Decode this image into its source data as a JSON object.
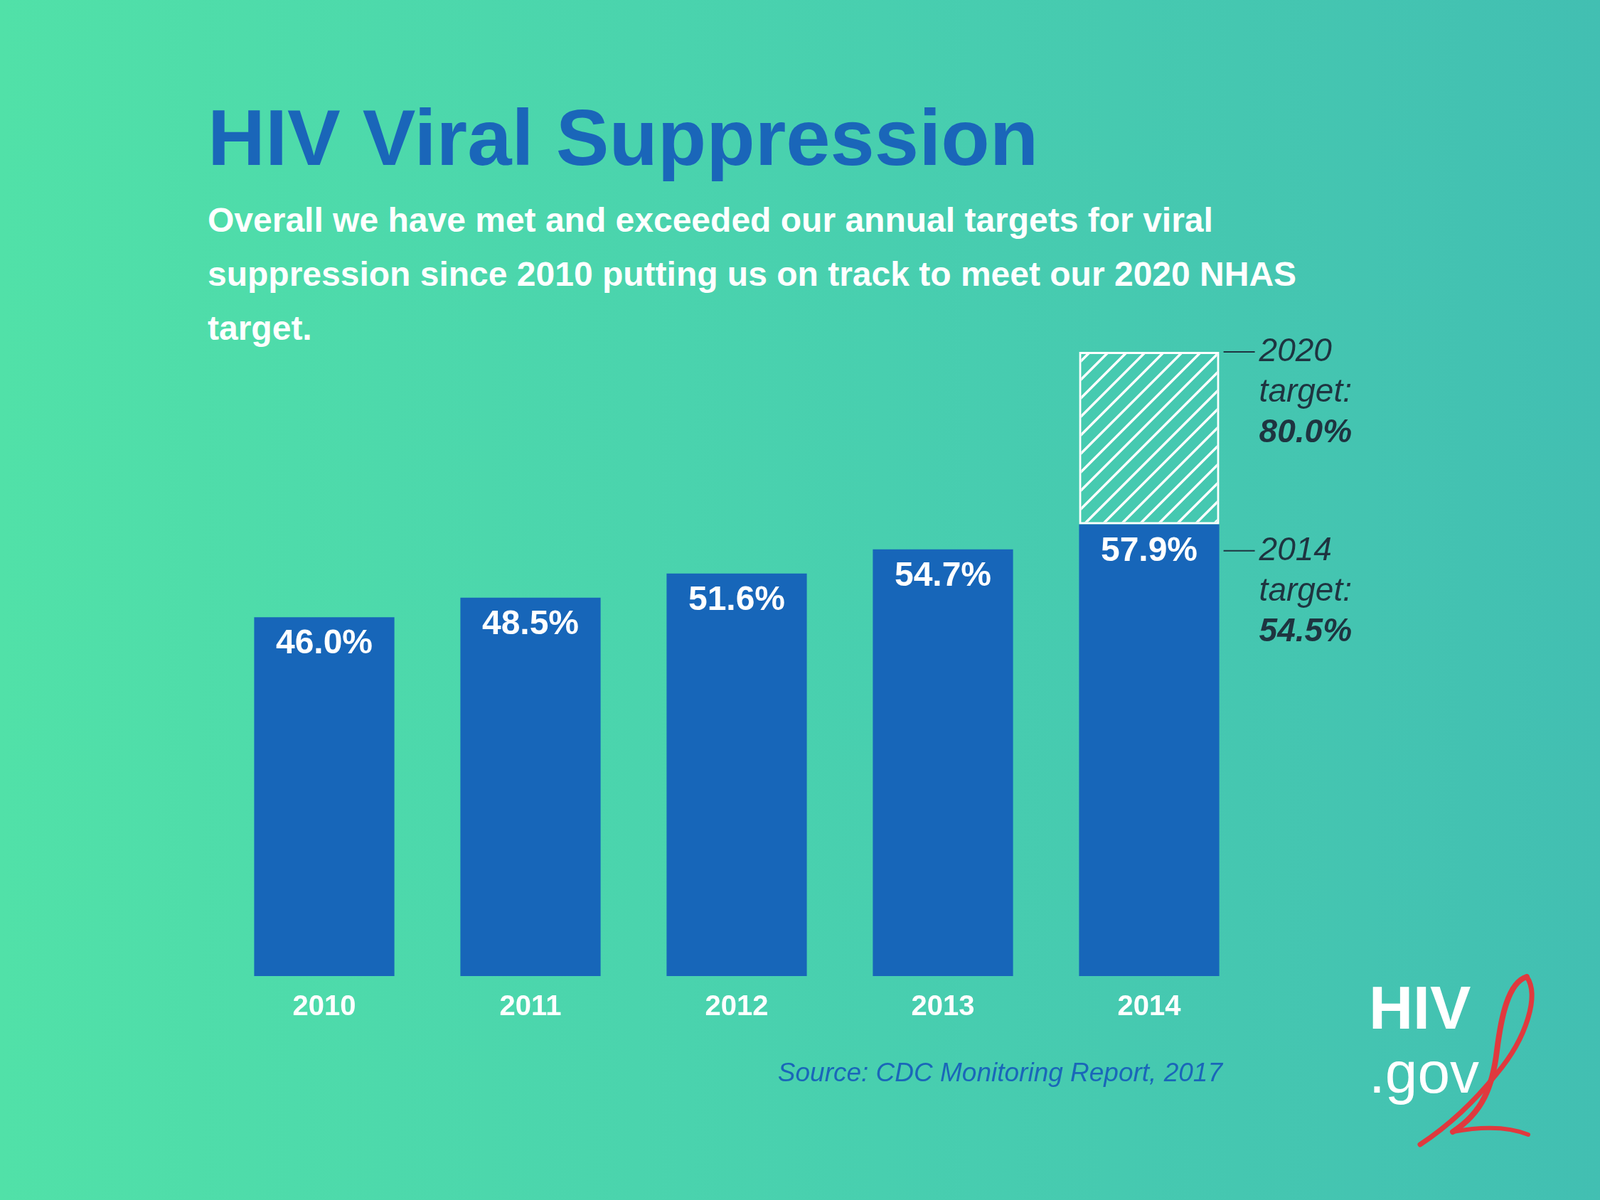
{
  "chart_data": {
    "type": "bar",
    "title": "HIV Viral Suppression",
    "subtitle": "Overall we have met and exceeded our annual targets for viral suppression since 2010 putting us on track to meet our 2020 NHAS target.",
    "categories": [
      "2010",
      "2011",
      "2012",
      "2013",
      "2014"
    ],
    "values": [
      46.0,
      48.5,
      51.6,
      54.7,
      57.9
    ],
    "value_labels": [
      "46.0%",
      "48.5%",
      "51.6%",
      "54.7%",
      "57.9%"
    ],
    "data_labels": true,
    "color": "#1766b9",
    "ylim": [
      0,
      80
    ],
    "grid": false,
    "tick_labels": "x",
    "annotations": [
      {
        "category": "2014",
        "label": "2020 target:",
        "value": 80.0,
        "value_label": "80.0%"
      },
      {
        "category": "2014",
        "label": "2014 target:",
        "value": 54.5,
        "value_label": "54.5%"
      }
    ],
    "source": "Source: CDC Monitoring Report, 2017",
    "logo": {
      "text": "HIV",
      "subtext": ".gov"
    }
  }
}
